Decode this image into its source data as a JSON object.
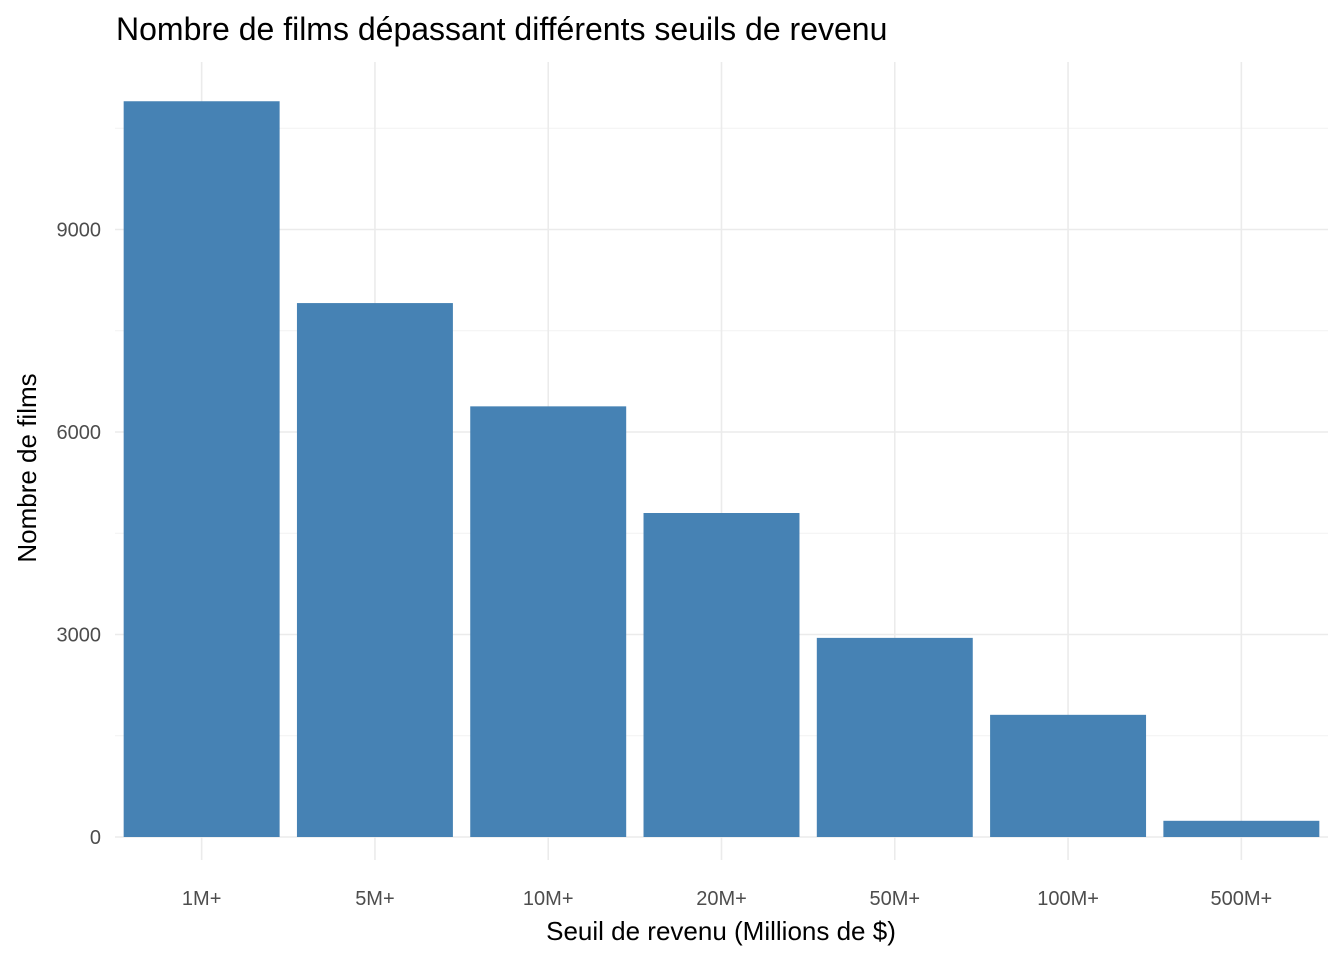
{
  "chart_data": {
    "type": "bar",
    "title": "Nombre de films dépassant différents seuils de revenu",
    "xlabel": "Seuil de revenu (Millions de $)",
    "ylabel": "Nombre de films",
    "categories": [
      "1M+",
      "5M+",
      "10M+",
      "20M+",
      "50M+",
      "100M+",
      "500M+"
    ],
    "values": [
      10900,
      7910,
      6380,
      4800,
      2950,
      1810,
      240
    ],
    "ylim": [
      0,
      11500
    ],
    "yticks": [
      0,
      3000,
      6000,
      9000
    ],
    "ytick_labels": [
      "0",
      "3000",
      "6000",
      "9000"
    ],
    "bar_color": "#4682b4",
    "grid": true,
    "legend": "none"
  }
}
